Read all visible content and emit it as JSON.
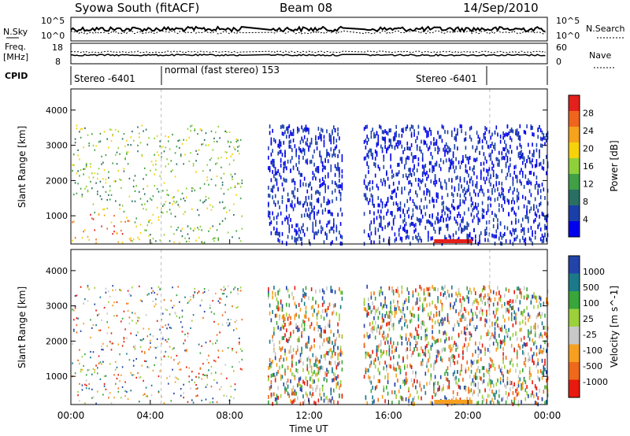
{
  "header": {
    "station": "Syowa South (fitACF)",
    "beam": "Beam 08",
    "date": "14/Sep/2010"
  },
  "panels": {
    "nsky": {
      "label": "N.Sky",
      "ticks": [
        "10^5",
        "10^0"
      ],
      "right_ticks": [
        "10^5",
        "10^0"
      ],
      "right_label": "N.Search"
    },
    "freq": {
      "label_line1": "Freq.",
      "label_line2": "[MHz]",
      "ticks": [
        "18",
        "8"
      ],
      "right_ticks": [
        "60",
        "0"
      ],
      "right_label": "Nave"
    },
    "cpid": {
      "label": "CPID",
      "modes": [
        "Stereo -6401",
        "normal (fast stereo) 153",
        "Stereo -6401"
      ]
    }
  },
  "colors": {
    "power": [
      "#0000ee",
      "#1a3fa8",
      "#2a6f64",
      "#3fa046",
      "#8fd03a",
      "#f6d20a",
      "#f7a21c",
      "#f0651e",
      "#e3201b"
    ],
    "velocity": [
      "#e8190e",
      "#ee6a1a",
      "#f7a020",
      "#c8c8c8",
      "#9bd13b",
      "#38a63a",
      "#1a7a8a",
      "#2244aa"
    ],
    "frame": "#000000"
  },
  "chart_data": [
    {
      "type": "heatmap",
      "title": "Power",
      "ylabel": "Slant Range [km]",
      "xlabel": "Time UT",
      "xlim": [
        0,
        24
      ],
      "ylim": [
        200,
        4600
      ],
      "xtick_labels": [
        "00:00",
        "04:00",
        "08:00",
        "12:00",
        "16:00",
        "20:00",
        "00:00"
      ],
      "ytick_values": [
        1000,
        2000,
        3000,
        4000
      ],
      "colorbar": {
        "label": "Power [dB]",
        "ticks": [
          "28",
          "24",
          "20",
          "16",
          "12",
          "8",
          "4"
        ],
        "range": [
          0,
          30
        ]
      },
      "data_gaps_hours": [
        [
          8.6,
          9.9
        ],
        [
          13.7,
          14.7
        ]
      ],
      "mode_changes_hours": [
        4.55,
        21.1
      ]
    },
    {
      "type": "heatmap",
      "title": "Velocity",
      "ylabel": "Slant Range [km]",
      "xlabel": "Time UT",
      "xlim": [
        0,
        24
      ],
      "ylim": [
        200,
        4600
      ],
      "xtick_labels": [
        "00:00",
        "04:00",
        "08:00",
        "12:00",
        "16:00",
        "20:00",
        "00:00"
      ],
      "ytick_values": [
        1000,
        2000,
        3000,
        4000
      ],
      "colorbar": {
        "label": "Velocity [m s^-1]",
        "ticks": [
          "1000",
          "500",
          "100",
          "25",
          "-25",
          "-100",
          "-500",
          "-1000"
        ],
        "range": [
          -1000,
          1000
        ]
      },
      "data_gaps_hours": [
        [
          8.6,
          9.9
        ],
        [
          13.7,
          14.7
        ]
      ],
      "mode_changes_hours": [
        4.55,
        21.1
      ]
    }
  ]
}
